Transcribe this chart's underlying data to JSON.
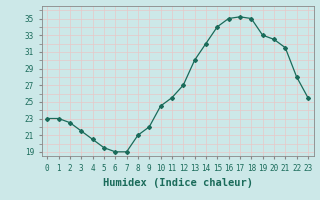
{
  "x": [
    0,
    1,
    2,
    3,
    4,
    5,
    6,
    7,
    8,
    9,
    10,
    11,
    12,
    13,
    14,
    15,
    16,
    17,
    18,
    19,
    20,
    21,
    22,
    23
  ],
  "y": [
    23,
    23,
    22.5,
    21.5,
    20.5,
    19.5,
    19,
    19,
    21,
    22,
    24.5,
    25.5,
    27,
    30,
    32,
    34,
    35,
    35.2,
    35,
    33,
    32.5,
    31.5,
    28,
    25.5
  ],
  "line_color": "#1a6b5a",
  "marker": "D",
  "marker_size": 2.0,
  "bg_color": "#cce8e8",
  "grid_color": "#e8c8c8",
  "xlabel": "Humidex (Indice chaleur)",
  "xlim": [
    -0.5,
    23.5
  ],
  "ylim": [
    18.5,
    36.5
  ],
  "yticks": [
    19,
    21,
    23,
    25,
    27,
    29,
    31,
    33,
    35
  ],
  "xticks": [
    0,
    1,
    2,
    3,
    4,
    5,
    6,
    7,
    8,
    9,
    10,
    11,
    12,
    13,
    14,
    15,
    16,
    17,
    18,
    19,
    20,
    21,
    22,
    23
  ],
  "tick_fontsize": 5.5,
  "label_fontsize": 7.5
}
